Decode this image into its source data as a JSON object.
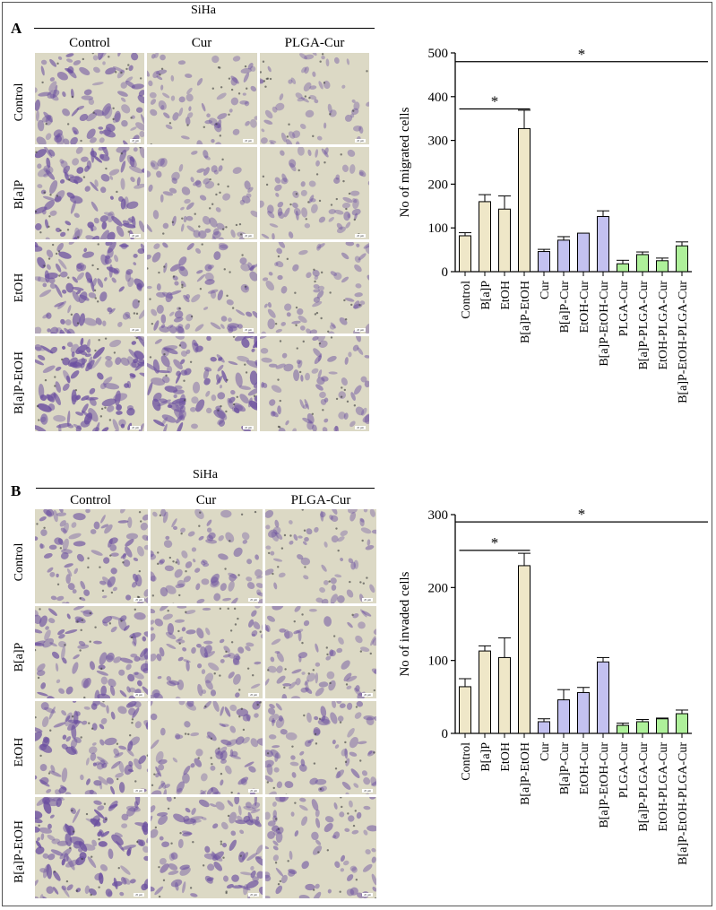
{
  "panels": [
    {
      "letter": "A",
      "group_title": "SiHa",
      "column_headers": [
        "Control",
        "Cur",
        "PLGA-Cur"
      ],
      "row_headers": [
        "Control",
        "B[a]P",
        "EtOH",
        "B[a]P-EtOH"
      ],
      "scale_label": "20 µm"
    },
    {
      "letter": "B",
      "group_title": "SiHa",
      "column_headers": [
        "Control",
        "Cur",
        "PLGA-Cur"
      ],
      "row_headers": [
        "Control",
        "B[a]P",
        "EtOH",
        "B[a]P-EtOH"
      ],
      "scale_label": "20 µm"
    }
  ],
  "colors": {
    "tan": "#efe7c8",
    "lavender": "#c3c1f0",
    "green": "#aef09a",
    "stain": "#6b4fa0",
    "background": "#dcd9c5"
  },
  "chart_data": [
    {
      "type": "bar",
      "ylabel": "No of migrated cells",
      "ylim": [
        0,
        500
      ],
      "yticks": [
        0,
        100,
        200,
        300,
        400,
        500
      ],
      "categories": [
        "Control",
        "B[a]P",
        "EtOH",
        "B[a]P-EtOH",
        "Cur",
        "B[a]P-Cur",
        "EtOH-Cur",
        "B[a]P-EtOH-Cur",
        "PLGA-Cur",
        "B[a]P-PLGA-Cur",
        "EtOH-PLGA-Cur",
        "B[a]P-EtOH-PLGA-Cur"
      ],
      "values": [
        82,
        160,
        143,
        327,
        46,
        72,
        88,
        126,
        18,
        39,
        25,
        59
      ],
      "errors": [
        7,
        16,
        30,
        42,
        5,
        8,
        0,
        13,
        8,
        6,
        6,
        9
      ],
      "color_groups": [
        "tan",
        "tan",
        "tan",
        "tan",
        "lavender",
        "lavender",
        "lavender",
        "lavender",
        "green",
        "green",
        "green",
        "green"
      ],
      "annotations": [
        {
          "text": "*",
          "from_index": 0,
          "to_index": 11,
          "y": 480
        },
        {
          "text": "*",
          "from_index": 0,
          "to_index": 3,
          "y": 372
        }
      ]
    },
    {
      "type": "bar",
      "ylabel": "No of invaded cells",
      "ylim": [
        0,
        300
      ],
      "yticks": [
        0,
        100,
        200,
        300
      ],
      "categories": [
        "Control",
        "B[a]P",
        "EtOH",
        "B[a]P-EtOH",
        "Cur",
        "B[a]P-Cur",
        "EtOH-Cur",
        "B[a]P-EtOH-Cur",
        "PLGA-Cur",
        "B[a]P-PLGA-Cur",
        "EtOH-PLGA-Cur",
        "B[a]P-EtOH-PLGA-Cur"
      ],
      "values": [
        64,
        113,
        104,
        230,
        16,
        46,
        56,
        98,
        11,
        16,
        20,
        27
      ],
      "errors": [
        11,
        7,
        27,
        17,
        4,
        14,
        7,
        6,
        3,
        3,
        1,
        5
      ],
      "color_groups": [
        "tan",
        "tan",
        "tan",
        "tan",
        "lavender",
        "lavender",
        "lavender",
        "lavender",
        "green",
        "green",
        "green",
        "green"
      ],
      "annotations": [
        {
          "text": "*",
          "from_index": 0,
          "to_index": 11,
          "y": 290
        },
        {
          "text": "*",
          "from_index": 0,
          "to_index": 3,
          "y": 251
        }
      ]
    }
  ]
}
